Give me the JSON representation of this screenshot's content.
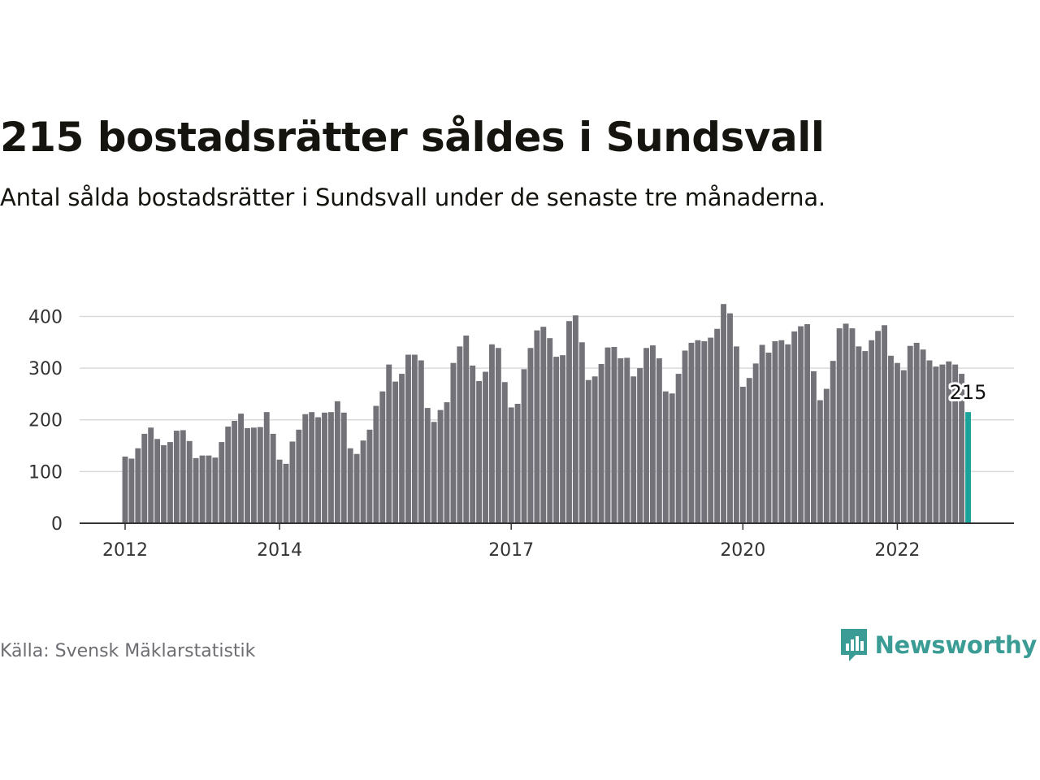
{
  "title": "215 bostadsrätter såldes i Sundsvall",
  "subtitle": "Antal sålda bostadsrätter i Sundsvall under de senaste tre månaderna.",
  "source": "Källa: Svensk Mäklarstatistik",
  "brand": {
    "name": "Newsworthy",
    "icon": "newsworthy-logo-icon",
    "color": "#3a9c94"
  },
  "colors": {
    "bar": "#737279",
    "highlight": "#1aa39a",
    "grid": "#d9d9d9",
    "axis": "#333333"
  },
  "chart_data": {
    "type": "bar",
    "x_start": "2012-01",
    "x_ticks": [
      "2012",
      "2014",
      "2017",
      "2020",
      "2022"
    ],
    "x_tick_values": [
      "2012-01",
      "2014-01",
      "2017-01",
      "2020-01",
      "2022-01"
    ],
    "y_ticks": [
      0,
      100,
      200,
      300,
      400
    ],
    "ylim": [
      0,
      440
    ],
    "grid": true,
    "values": [
      129,
      125,
      145,
      173,
      185,
      163,
      151,
      157,
      179,
      180,
      159,
      126,
      131,
      131,
      127,
      157,
      187,
      198,
      212,
      184,
      185,
      186,
      215,
      173,
      123,
      115,
      158,
      181,
      211,
      215,
      205,
      214,
      215,
      236,
      214,
      145,
      134,
      160,
      181,
      227,
      255,
      307,
      274,
      289,
      326,
      326,
      315,
      223,
      196,
      219,
      234,
      310,
      342,
      363,
      305,
      275,
      293,
      346,
      339,
      273,
      224,
      231,
      298,
      339,
      373,
      380,
      358,
      322,
      325,
      391,
      402,
      350,
      277,
      284,
      308,
      340,
      341,
      319,
      320,
      284,
      300,
      339,
      344,
      319,
      255,
      251,
      289,
      334,
      349,
      354,
      352,
      359,
      376,
      424,
      406,
      342,
      264,
      281,
      309,
      345,
      330,
      352,
      354,
      346,
      371,
      381,
      385,
      294,
      238,
      260,
      314,
      377,
      386,
      377,
      342,
      333,
      354,
      372,
      383,
      324,
      310,
      296,
      343,
      349,
      336,
      315,
      303,
      307,
      313,
      307,
      289,
      215
    ],
    "highlight": {
      "value": 215,
      "label": "215"
    }
  }
}
